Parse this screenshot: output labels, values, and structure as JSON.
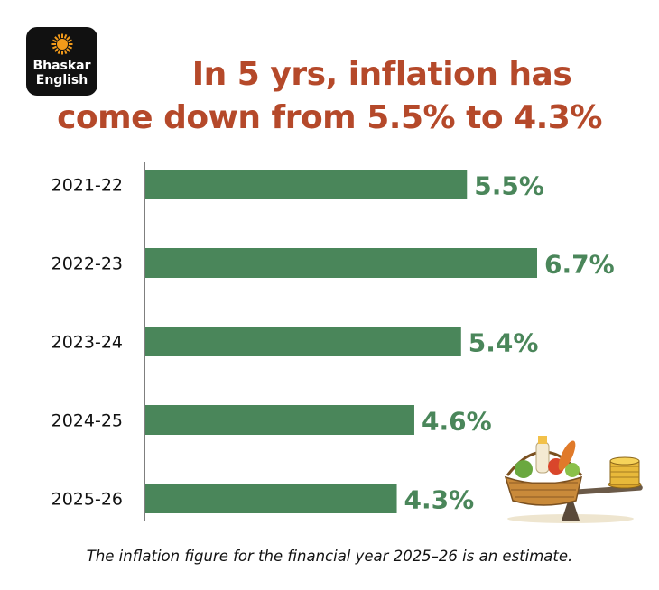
{
  "brand": {
    "line1": "Bhaskar",
    "line2": "English",
    "colors": {
      "logo_bg": "#111111",
      "sun": "#f29a1a"
    }
  },
  "headline": {
    "line1": "In 5 yrs, inflation has",
    "line2": "come down from 5.5% to 4.3%"
  },
  "footnote": "The inflation figure for the financial year 2025–26 is an estimate.",
  "colors": {
    "title": "#b5492a",
    "bar": "#4a865a",
    "value_label": "#4a865a",
    "axis": "#555555"
  },
  "illustration": {
    "icon": "food-basket-and-coins-on-balance-scale-icon"
  },
  "chart_data": {
    "type": "bar",
    "orientation": "horizontal",
    "categories": [
      "2021-22",
      "2022-23",
      "2023-24",
      "2024-25",
      "2025-26"
    ],
    "values": [
      5.5,
      6.7,
      5.4,
      4.6,
      4.3
    ],
    "value_labels": [
      "5.5%",
      "6.7%",
      "5.4%",
      "4.6%",
      "4.3%"
    ],
    "title": "In 5 yrs, inflation has come down from 5.5% to 4.3%",
    "xlabel": "",
    "ylabel": "",
    "xlim": [
      0,
      6.7
    ],
    "grid": false,
    "legend": "none"
  }
}
